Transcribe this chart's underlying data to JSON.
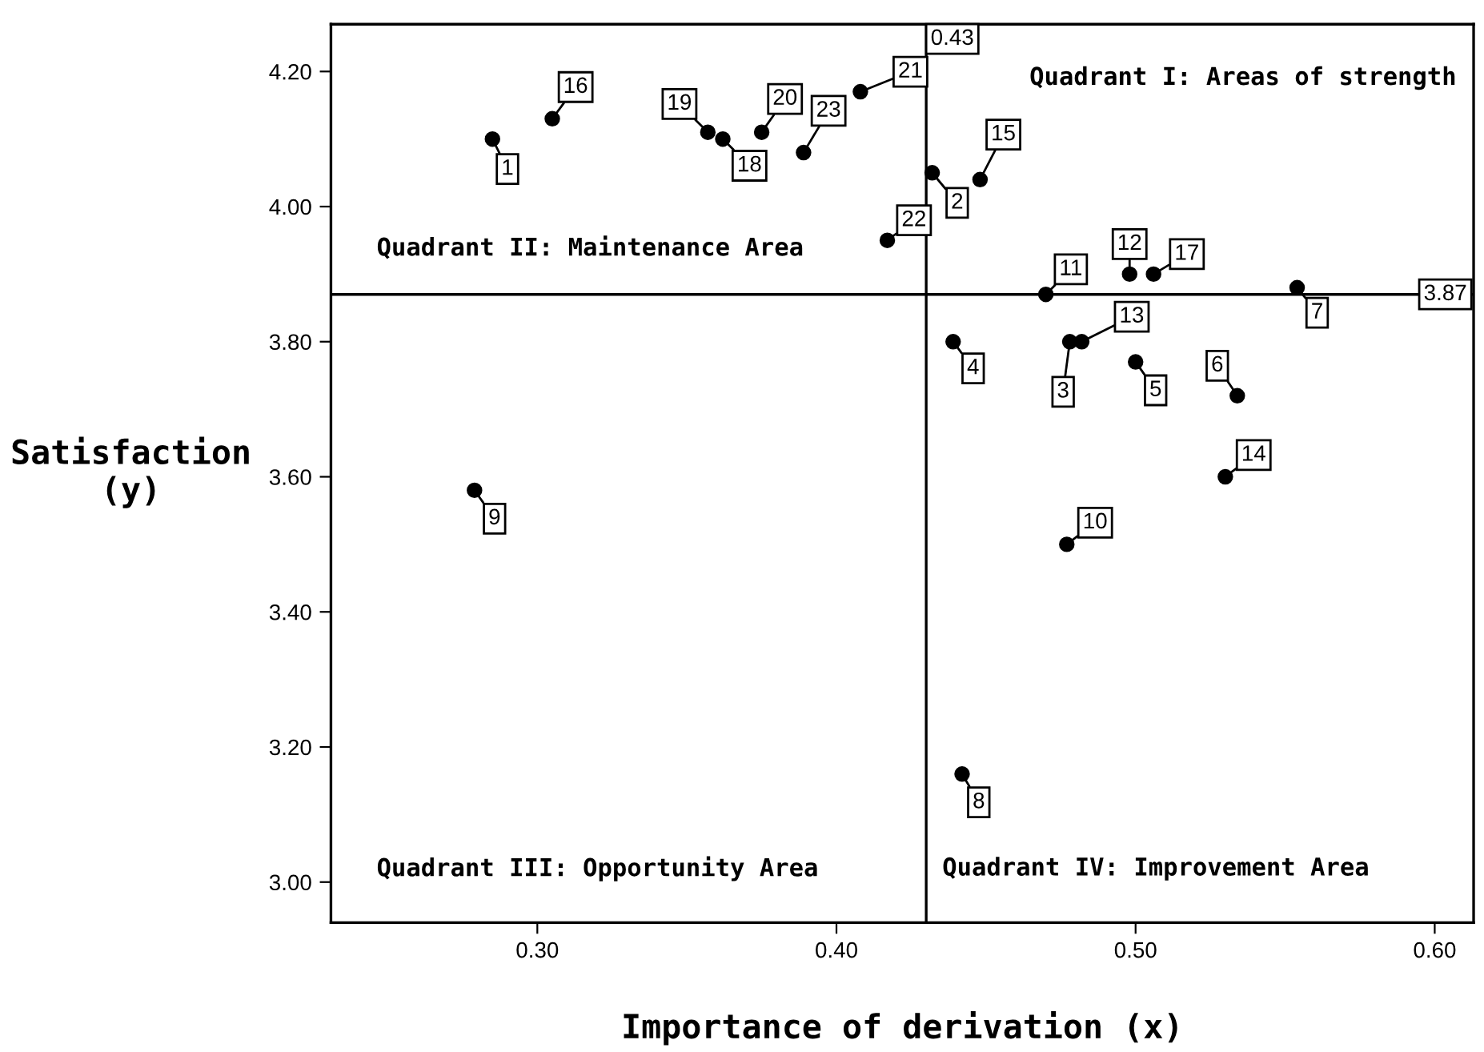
{
  "chart_data": {
    "type": "scatter",
    "xlabel": "Importance of derivation (x)",
    "ylabel": "Satisfaction\n(y)",
    "x": [
      0.285,
      0.432,
      0.478,
      0.439,
      0.5,
      0.534,
      0.554,
      0.442,
      0.279,
      0.477,
      0.47,
      0.498,
      0.482,
      0.53,
      0.448,
      0.305,
      0.506,
      0.362,
      0.357,
      0.375,
      0.408,
      0.417,
      0.389
    ],
    "series": [
      {
        "color": "#000000",
        "values": [
          4.1,
          4.05,
          3.8,
          3.8,
          3.77,
          3.72,
          3.88,
          3.16,
          3.58,
          3.5,
          3.87,
          3.9,
          3.8,
          3.6,
          4.04,
          4.13,
          3.9,
          4.1,
          4.11,
          4.11,
          4.17,
          3.95,
          4.08
        ]
      }
    ],
    "marker": "circle",
    "xlim": [
      0.231,
      0.613
    ],
    "ylim": [
      2.94,
      4.27
    ],
    "xticks": [
      {
        "value": 0.3,
        "label": "0.30"
      },
      {
        "value": 0.4,
        "label": "0.40"
      },
      {
        "value": 0.5,
        "label": "0.50"
      },
      {
        "value": 0.6,
        "label": "0.60"
      }
    ],
    "yticks": [
      {
        "value": 3.0,
        "label": "3.00"
      },
      {
        "value": 3.2,
        "label": "3.20"
      },
      {
        "value": 3.4,
        "label": "3.40"
      },
      {
        "value": 3.6,
        "label": "3.60"
      },
      {
        "value": 3.8,
        "label": "3.80"
      },
      {
        "value": 4.0,
        "label": "4.00"
      },
      {
        "value": 4.2,
        "label": "4.20"
      }
    ],
    "grid": false,
    "ref_lines": [
      {
        "axis": "x",
        "value": 0.43,
        "label": "0.43",
        "color": "#000000"
      },
      {
        "axis": "y",
        "value": 3.87,
        "label": "3.87",
        "color": "#000000"
      }
    ],
    "annotations": [
      "Quadrant I: Areas of strength",
      "Quadrant II: Maintenance Area",
      "Quadrant III: Opportunity Area",
      "Quadrant IV: Improvement Area",
      {
        "text": "1",
        "x": 0.285,
        "y": 4.1
      },
      {
        "text": "2",
        "x": 0.432,
        "y": 4.05
      },
      {
        "text": "3",
        "x": 0.478,
        "y": 3.8
      },
      {
        "text": "4",
        "x": 0.439,
        "y": 3.8
      },
      {
        "text": "5",
        "x": 0.5,
        "y": 3.77
      },
      {
        "text": "6",
        "x": 0.534,
        "y": 3.72
      },
      {
        "text": "7",
        "x": 0.554,
        "y": 3.88
      },
      {
        "text": "8",
        "x": 0.442,
        "y": 3.16
      },
      {
        "text": "9",
        "x": 0.279,
        "y": 3.58
      },
      {
        "text": "10",
        "x": 0.477,
        "y": 3.5
      },
      {
        "text": "11",
        "x": 0.47,
        "y": 3.87
      },
      {
        "text": "12",
        "x": 0.498,
        "y": 3.9
      },
      {
        "text": "13",
        "x": 0.482,
        "y": 3.8
      },
      {
        "text": "14",
        "x": 0.53,
        "y": 3.6
      },
      {
        "text": "15",
        "x": 0.448,
        "y": 4.04
      },
      {
        "text": "16",
        "x": 0.305,
        "y": 4.13
      },
      {
        "text": "17",
        "x": 0.506,
        "y": 3.9
      },
      {
        "text": "18",
        "x": 0.362,
        "y": 4.1
      },
      {
        "text": "19",
        "x": 0.357,
        "y": 4.11
      },
      {
        "text": "20",
        "x": 0.375,
        "y": 4.11
      },
      {
        "text": "21",
        "x": 0.408,
        "y": 4.17
      },
      {
        "text": "22",
        "x": 0.417,
        "y": 3.95
      },
      {
        "text": "23",
        "x": 0.389,
        "y": 4.08
      }
    ]
  }
}
